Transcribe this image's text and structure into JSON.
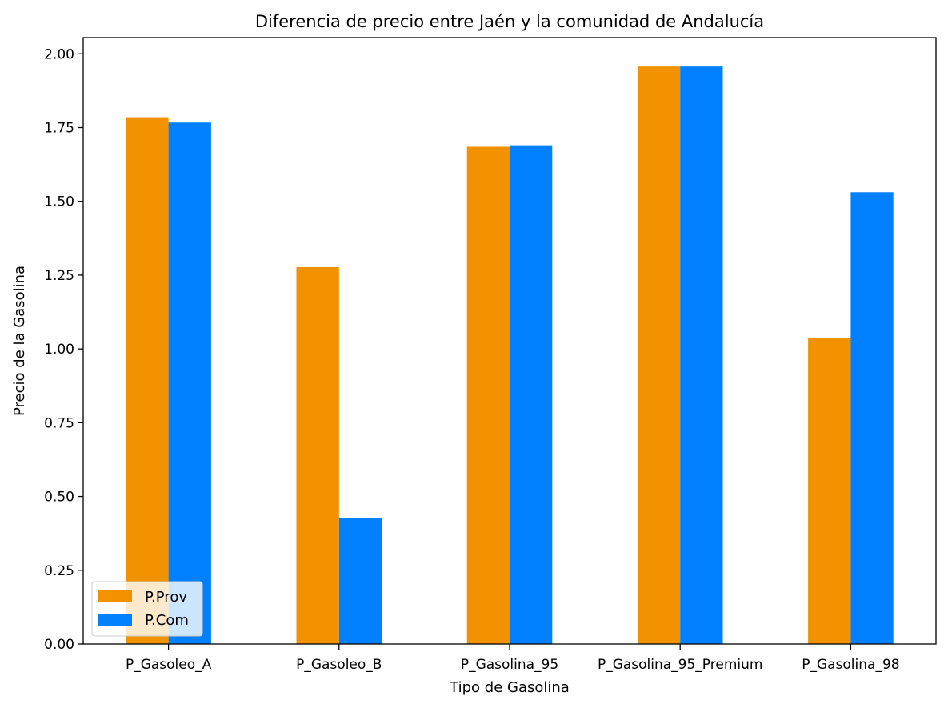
{
  "chart_data": {
    "type": "bar",
    "title": "Diferencia de precio entre Jaén y la comunidad de Andalucía",
    "xlabel": "Tipo de Gasolina",
    "ylabel": "Precio de la Gasolina",
    "categories": [
      "P_Gasoleo_A",
      "P_Gasoleo_B",
      "P_Gasolina_95",
      "P_Gasolina_95_Premium",
      "P_Gasolina_98"
    ],
    "series": [
      {
        "name": "P.Prov",
        "color": "#f39200",
        "values": [
          1.785,
          1.277,
          1.685,
          1.957,
          1.038
        ]
      },
      {
        "name": "P.Com",
        "color": "#0080ff",
        "values": [
          1.767,
          0.427,
          1.69,
          1.957,
          1.531
        ]
      }
    ],
    "ylim": [
      0,
      2.055
    ],
    "yticks": [
      "0.00",
      "0.25",
      "0.50",
      "0.75",
      "1.00",
      "1.25",
      "1.50",
      "1.75",
      "2.00"
    ],
    "grid": false,
    "legend_position": "lower-left"
  }
}
